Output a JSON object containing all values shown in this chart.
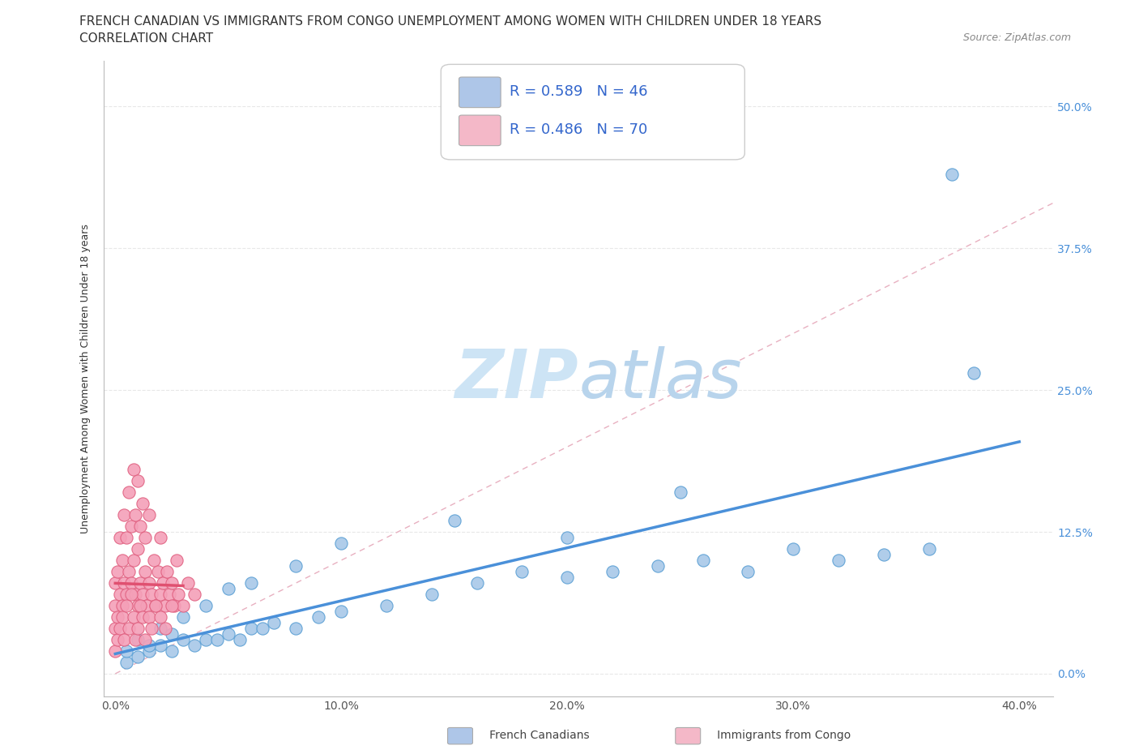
{
  "title_line1": "FRENCH CANADIAN VS IMMIGRANTS FROM CONGO UNEMPLOYMENT AMONG WOMEN WITH CHILDREN UNDER 18 YEARS",
  "title_line2": "CORRELATION CHART",
  "source_text": "Source: ZipAtlas.com",
  "ylabel": "Unemployment Among Women with Children Under 18 years",
  "x_tick_labels": [
    "0.0%",
    "10.0%",
    "20.0%",
    "30.0%",
    "40.0%"
  ],
  "y_tick_labels_right": [
    "0.0%",
    "12.5%",
    "25.0%",
    "37.5%",
    "50.0%"
  ],
  "x_ticks": [
    0.0,
    0.1,
    0.2,
    0.3,
    0.4
  ],
  "y_ticks": [
    0.0,
    0.125,
    0.25,
    0.375,
    0.5
  ],
  "xlim": [
    -0.005,
    0.415
  ],
  "ylim": [
    -0.02,
    0.54
  ],
  "legend_R1": "0.589",
  "legend_N1": "46",
  "legend_R2": "0.486",
  "legend_N2": "70",
  "legend_color1": "#aec6e8",
  "legend_color2": "#f4b8c8",
  "watermark_zip": "ZIP",
  "watermark_atlas": "atlas",
  "watermark_color": "#cde4f5",
  "label_french": "French Canadians",
  "label_congo": "Immigrants from Congo",
  "blue_scatter_color": "#a8c8e8",
  "blue_scatter_edge": "#5a9fd4",
  "pink_scatter_color": "#f4a0b8",
  "pink_scatter_edge": "#e06080",
  "blue_line_color": "#4a90d9",
  "pink_line_color": "#e05070",
  "diag_line_color": "#c8c8c8",
  "background_color": "#ffffff",
  "grid_color": "#e8e8e8",
  "french_x": [
    0.005,
    0.01,
    0.015,
    0.02,
    0.025,
    0.03,
    0.035,
    0.04,
    0.045,
    0.05,
    0.055,
    0.06,
    0.065,
    0.07,
    0.08,
    0.09,
    0.1,
    0.12,
    0.14,
    0.16,
    0.18,
    0.2,
    0.22,
    0.24,
    0.26,
    0.28,
    0.3,
    0.32,
    0.34,
    0.36,
    0.005,
    0.01,
    0.015,
    0.02,
    0.025,
    0.03,
    0.04,
    0.05,
    0.06,
    0.08,
    0.1,
    0.15,
    0.2,
    0.25,
    0.37,
    0.38
  ],
  "french_y": [
    0.01,
    0.015,
    0.02,
    0.025,
    0.02,
    0.03,
    0.025,
    0.03,
    0.03,
    0.035,
    0.03,
    0.04,
    0.04,
    0.045,
    0.04,
    0.05,
    0.055,
    0.06,
    0.07,
    0.08,
    0.09,
    0.085,
    0.09,
    0.095,
    0.1,
    0.09,
    0.11,
    0.1,
    0.105,
    0.11,
    0.02,
    0.03,
    0.025,
    0.04,
    0.035,
    0.05,
    0.06,
    0.075,
    0.08,
    0.095,
    0.115,
    0.135,
    0.12,
    0.16,
    0.44,
    0.265
  ],
  "congo_x": [
    0.0,
    0.0,
    0.0,
    0.001,
    0.001,
    0.002,
    0.002,
    0.003,
    0.003,
    0.004,
    0.004,
    0.005,
    0.005,
    0.006,
    0.006,
    0.007,
    0.007,
    0.008,
    0.008,
    0.009,
    0.009,
    0.01,
    0.01,
    0.01,
    0.011,
    0.011,
    0.012,
    0.012,
    0.013,
    0.013,
    0.014,
    0.015,
    0.015,
    0.016,
    0.017,
    0.018,
    0.019,
    0.02,
    0.02,
    0.021,
    0.022,
    0.023,
    0.024,
    0.025,
    0.026,
    0.027,
    0.028,
    0.03,
    0.032,
    0.035,
    0.0,
    0.001,
    0.002,
    0.003,
    0.004,
    0.005,
    0.006,
    0.007,
    0.008,
    0.009,
    0.01,
    0.011,
    0.012,
    0.013,
    0.015,
    0.016,
    0.018,
    0.02,
    0.022,
    0.025
  ],
  "congo_y": [
    0.04,
    0.06,
    0.08,
    0.05,
    0.09,
    0.07,
    0.12,
    0.06,
    0.1,
    0.08,
    0.14,
    0.07,
    0.12,
    0.09,
    0.16,
    0.08,
    0.13,
    0.1,
    0.18,
    0.07,
    0.14,
    0.06,
    0.11,
    0.17,
    0.08,
    0.13,
    0.07,
    0.15,
    0.09,
    0.12,
    0.06,
    0.08,
    0.14,
    0.07,
    0.1,
    0.06,
    0.09,
    0.07,
    0.12,
    0.08,
    0.06,
    0.09,
    0.07,
    0.08,
    0.06,
    0.1,
    0.07,
    0.06,
    0.08,
    0.07,
    0.02,
    0.03,
    0.04,
    0.05,
    0.03,
    0.06,
    0.04,
    0.07,
    0.05,
    0.03,
    0.04,
    0.06,
    0.05,
    0.03,
    0.05,
    0.04,
    0.06,
    0.05,
    0.04,
    0.06
  ]
}
